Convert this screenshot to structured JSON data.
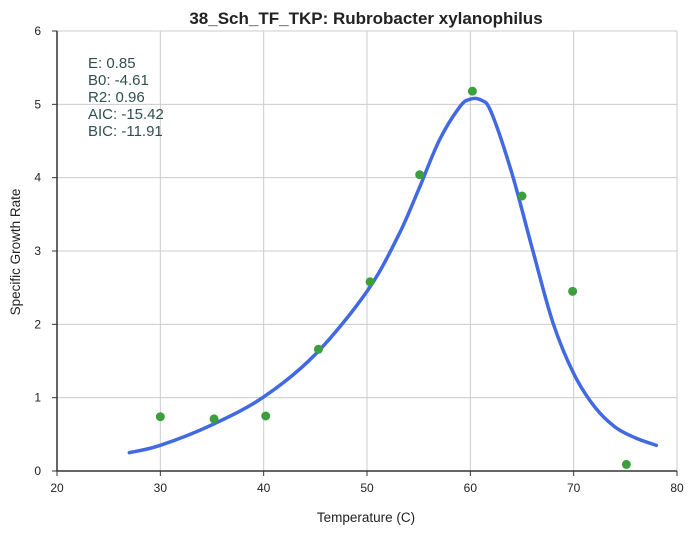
{
  "chart_data": {
    "type": "scatter",
    "title": "38_Sch_TF_TKP: Rubrobacter xylanophilus",
    "xlabel": "Temperature (C)",
    "ylabel": "Specific Growth Rate",
    "xlim": [
      20,
      80
    ],
    "ylim": [
      0,
      6
    ],
    "xticks": [
      "20",
      "30",
      "40",
      "50",
      "60",
      "70",
      "80"
    ],
    "yticks": [
      "0",
      "1",
      "2",
      "3",
      "4",
      "5",
      "6"
    ],
    "grid": true,
    "series": [
      {
        "kind": "points",
        "color": "#3c9e3c",
        "x": [
          30,
          35.2,
          40.2,
          45.3,
          50.3,
          55.1,
          60.2,
          65.0,
          69.9,
          75.1
        ],
        "y": [
          0.74,
          0.71,
          0.75,
          1.66,
          2.58,
          4.04,
          5.18,
          3.75,
          2.45,
          0.09
        ]
      },
      {
        "kind": "fitted-curve",
        "color": "#4169e1",
        "x": [
          27,
          30,
          35,
          40,
          45,
          50,
          53,
          55,
          57,
          59,
          60,
          61,
          62,
          64,
          66,
          68,
          70,
          72,
          74,
          76,
          78
        ],
        "y": [
          0.25,
          0.35,
          0.63,
          1.01,
          1.59,
          2.45,
          3.2,
          3.84,
          4.51,
          4.97,
          5.07,
          5.06,
          4.9,
          4.07,
          3.03,
          2.02,
          1.33,
          0.88,
          0.6,
          0.45,
          0.35
        ]
      }
    ],
    "annotations": [
      "E:  0.85",
      "B0:  -4.61",
      "R2:  0.96",
      "AIC: -15.42",
      "BIC: -11.91"
    ]
  }
}
